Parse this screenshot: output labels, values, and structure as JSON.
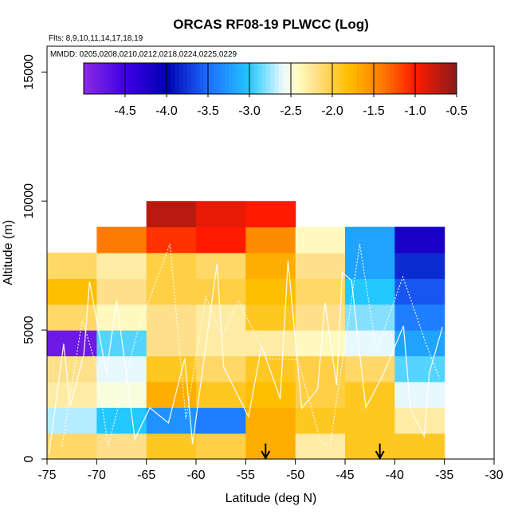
{
  "chart_data": {
    "type": "heatmap",
    "title": "ORCAS RF08-19 PLWCC (Log)",
    "flights_note": "Flts: 8,9,10,11,14,17,18,19",
    "dates_note": "MMDD: 0205,0208,0210,0212,0218,0224,0225,0229",
    "xlabel": "Latitude (deg N)",
    "ylabel": "Altitude (m)",
    "xlim": [
      -75,
      -30
    ],
    "ylim": [
      0,
      16000
    ],
    "x_ticks": [
      -75,
      -70,
      -65,
      -60,
      -55,
      -50,
      -45,
      -40,
      -35,
      -30
    ],
    "y_ticks": [
      0,
      5000,
      10000,
      15000
    ],
    "colorbar": {
      "min": -5.0,
      "max": -0.5,
      "ticks": [
        -4.5,
        -4.0,
        -3.5,
        -3.0,
        -2.5,
        -2.0,
        -1.5,
        -1.0,
        -0.5
      ]
    },
    "cell_width_deg": 5,
    "cell_height_m": 1000,
    "x_bins": [
      -75,
      -70,
      -65,
      -60,
      -55,
      -50,
      -45,
      -40
    ],
    "y_bins": [
      0,
      1000,
      2000,
      3000,
      4000,
      5000,
      6000,
      7000,
      8000,
      9000
    ],
    "values": [
      [
        -2.1,
        -2.2,
        -1.9,
        -2.0,
        -1.7,
        -2.3,
        -1.9,
        -1.9
      ],
      [
        -2.7,
        -3.0,
        -3.3,
        -3.4,
        -1.7,
        -1.9,
        -1.9,
        -2.3
      ],
      [
        -2.3,
        -2.5,
        -1.7,
        -1.9,
        -1.8,
        -2.0,
        -1.9,
        -2.6
      ],
      [
        -2.2,
        -2.6,
        -1.9,
        -2.1,
        -1.9,
        -2.0,
        -2.1,
        -2.9
      ],
      [
        -4.8,
        -2.9,
        -2.2,
        -2.3,
        -2.3,
        -2.4,
        -2.6,
        -3.2
      ],
      [
        -2.1,
        -2.4,
        -2.2,
        -2.3,
        -1.9,
        -2.2,
        -2.8,
        -3.4
      ],
      [
        -1.8,
        -2.2,
        -2.0,
        -2.0,
        -1.8,
        -2.1,
        -3.0,
        -3.6
      ],
      [
        -2.1,
        -2.3,
        -2.0,
        -2.1,
        -1.7,
        -2.2,
        -3.2,
        -3.8
      ],
      [
        null,
        -1.4,
        -1.1,
        -1.0,
        -1.5,
        -2.4,
        -3.2,
        -4.2
      ],
      [
        null,
        null,
        -0.7,
        -0.9,
        -1.0,
        null,
        null,
        null
      ]
    ],
    "markers": [
      {
        "label": "arrow",
        "x": -53.0
      },
      {
        "label": "arrow",
        "x": -41.5
      }
    ]
  }
}
